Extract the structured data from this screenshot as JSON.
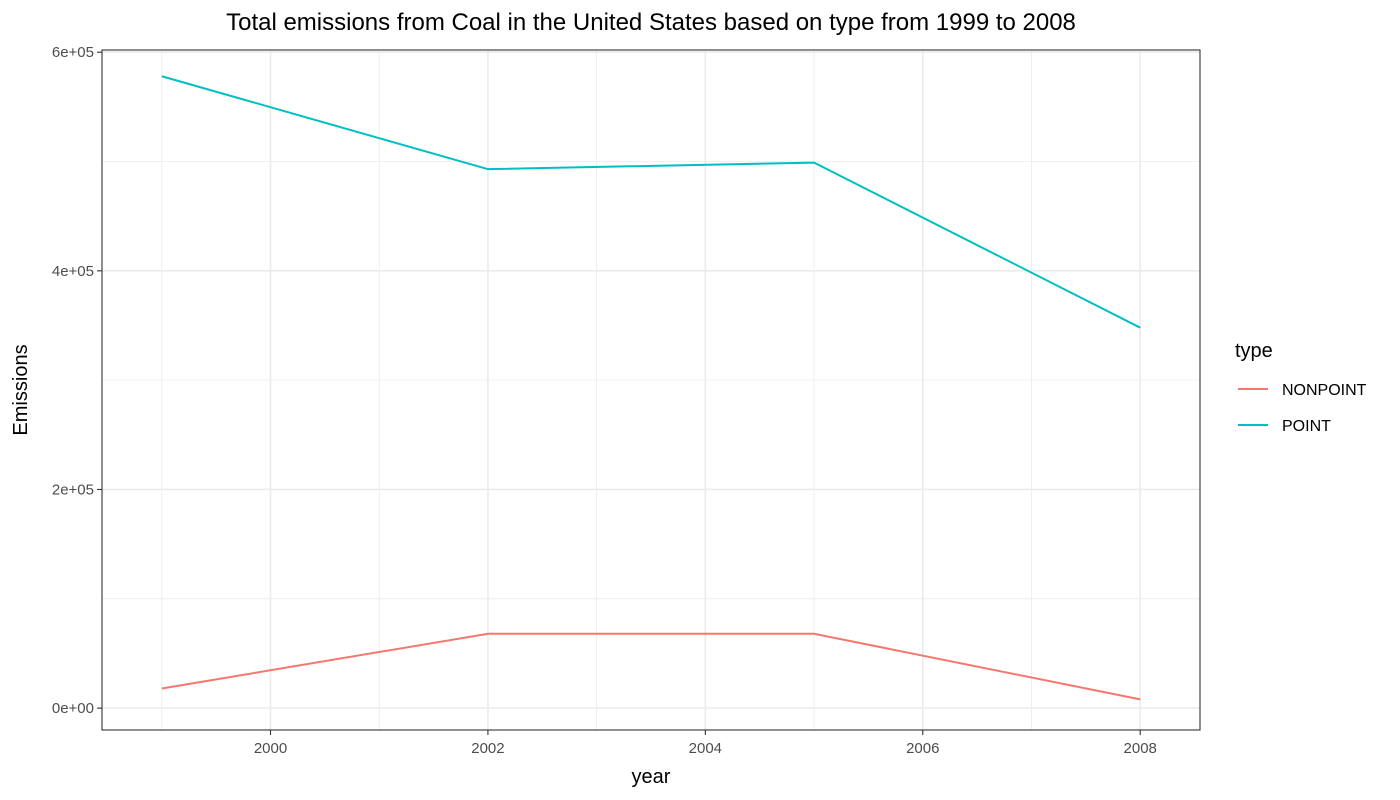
{
  "chart_data": {
    "type": "line",
    "title": "Total emissions from Coal in the  United States based on type from 1999 to 2008",
    "xlabel": "year",
    "ylabel": "Emissions",
    "x": [
      1999,
      2002,
      2005,
      2008
    ],
    "xlim": [
      1998.45,
      2008.55
    ],
    "ylim": [
      -20000,
      602000
    ],
    "x_ticks": [
      2000,
      2002,
      2004,
      2006,
      2008
    ],
    "x_tick_labels": [
      "2000",
      "2002",
      "2004",
      "2006",
      "2008"
    ],
    "x_minor_ticks": [
      1999,
      2001,
      2003,
      2005,
      2007
    ],
    "y_ticks": [
      0,
      200000,
      400000,
      600000
    ],
    "y_tick_labels": [
      "0e+00",
      "2e+05",
      "4e+05",
      "6e+05"
    ],
    "y_minor_ticks": [
      100000,
      300000,
      500000
    ],
    "grid": true,
    "legend": {
      "title": "type",
      "placement": "right"
    },
    "series": [
      {
        "name": "NONPOINT",
        "color": "#f8766d",
        "values": [
          18000,
          68000,
          68000,
          8000
        ]
      },
      {
        "name": "POINT",
        "color": "#00bfc4",
        "values": [
          578000,
          493000,
          499000,
          348000
        ]
      }
    ]
  }
}
